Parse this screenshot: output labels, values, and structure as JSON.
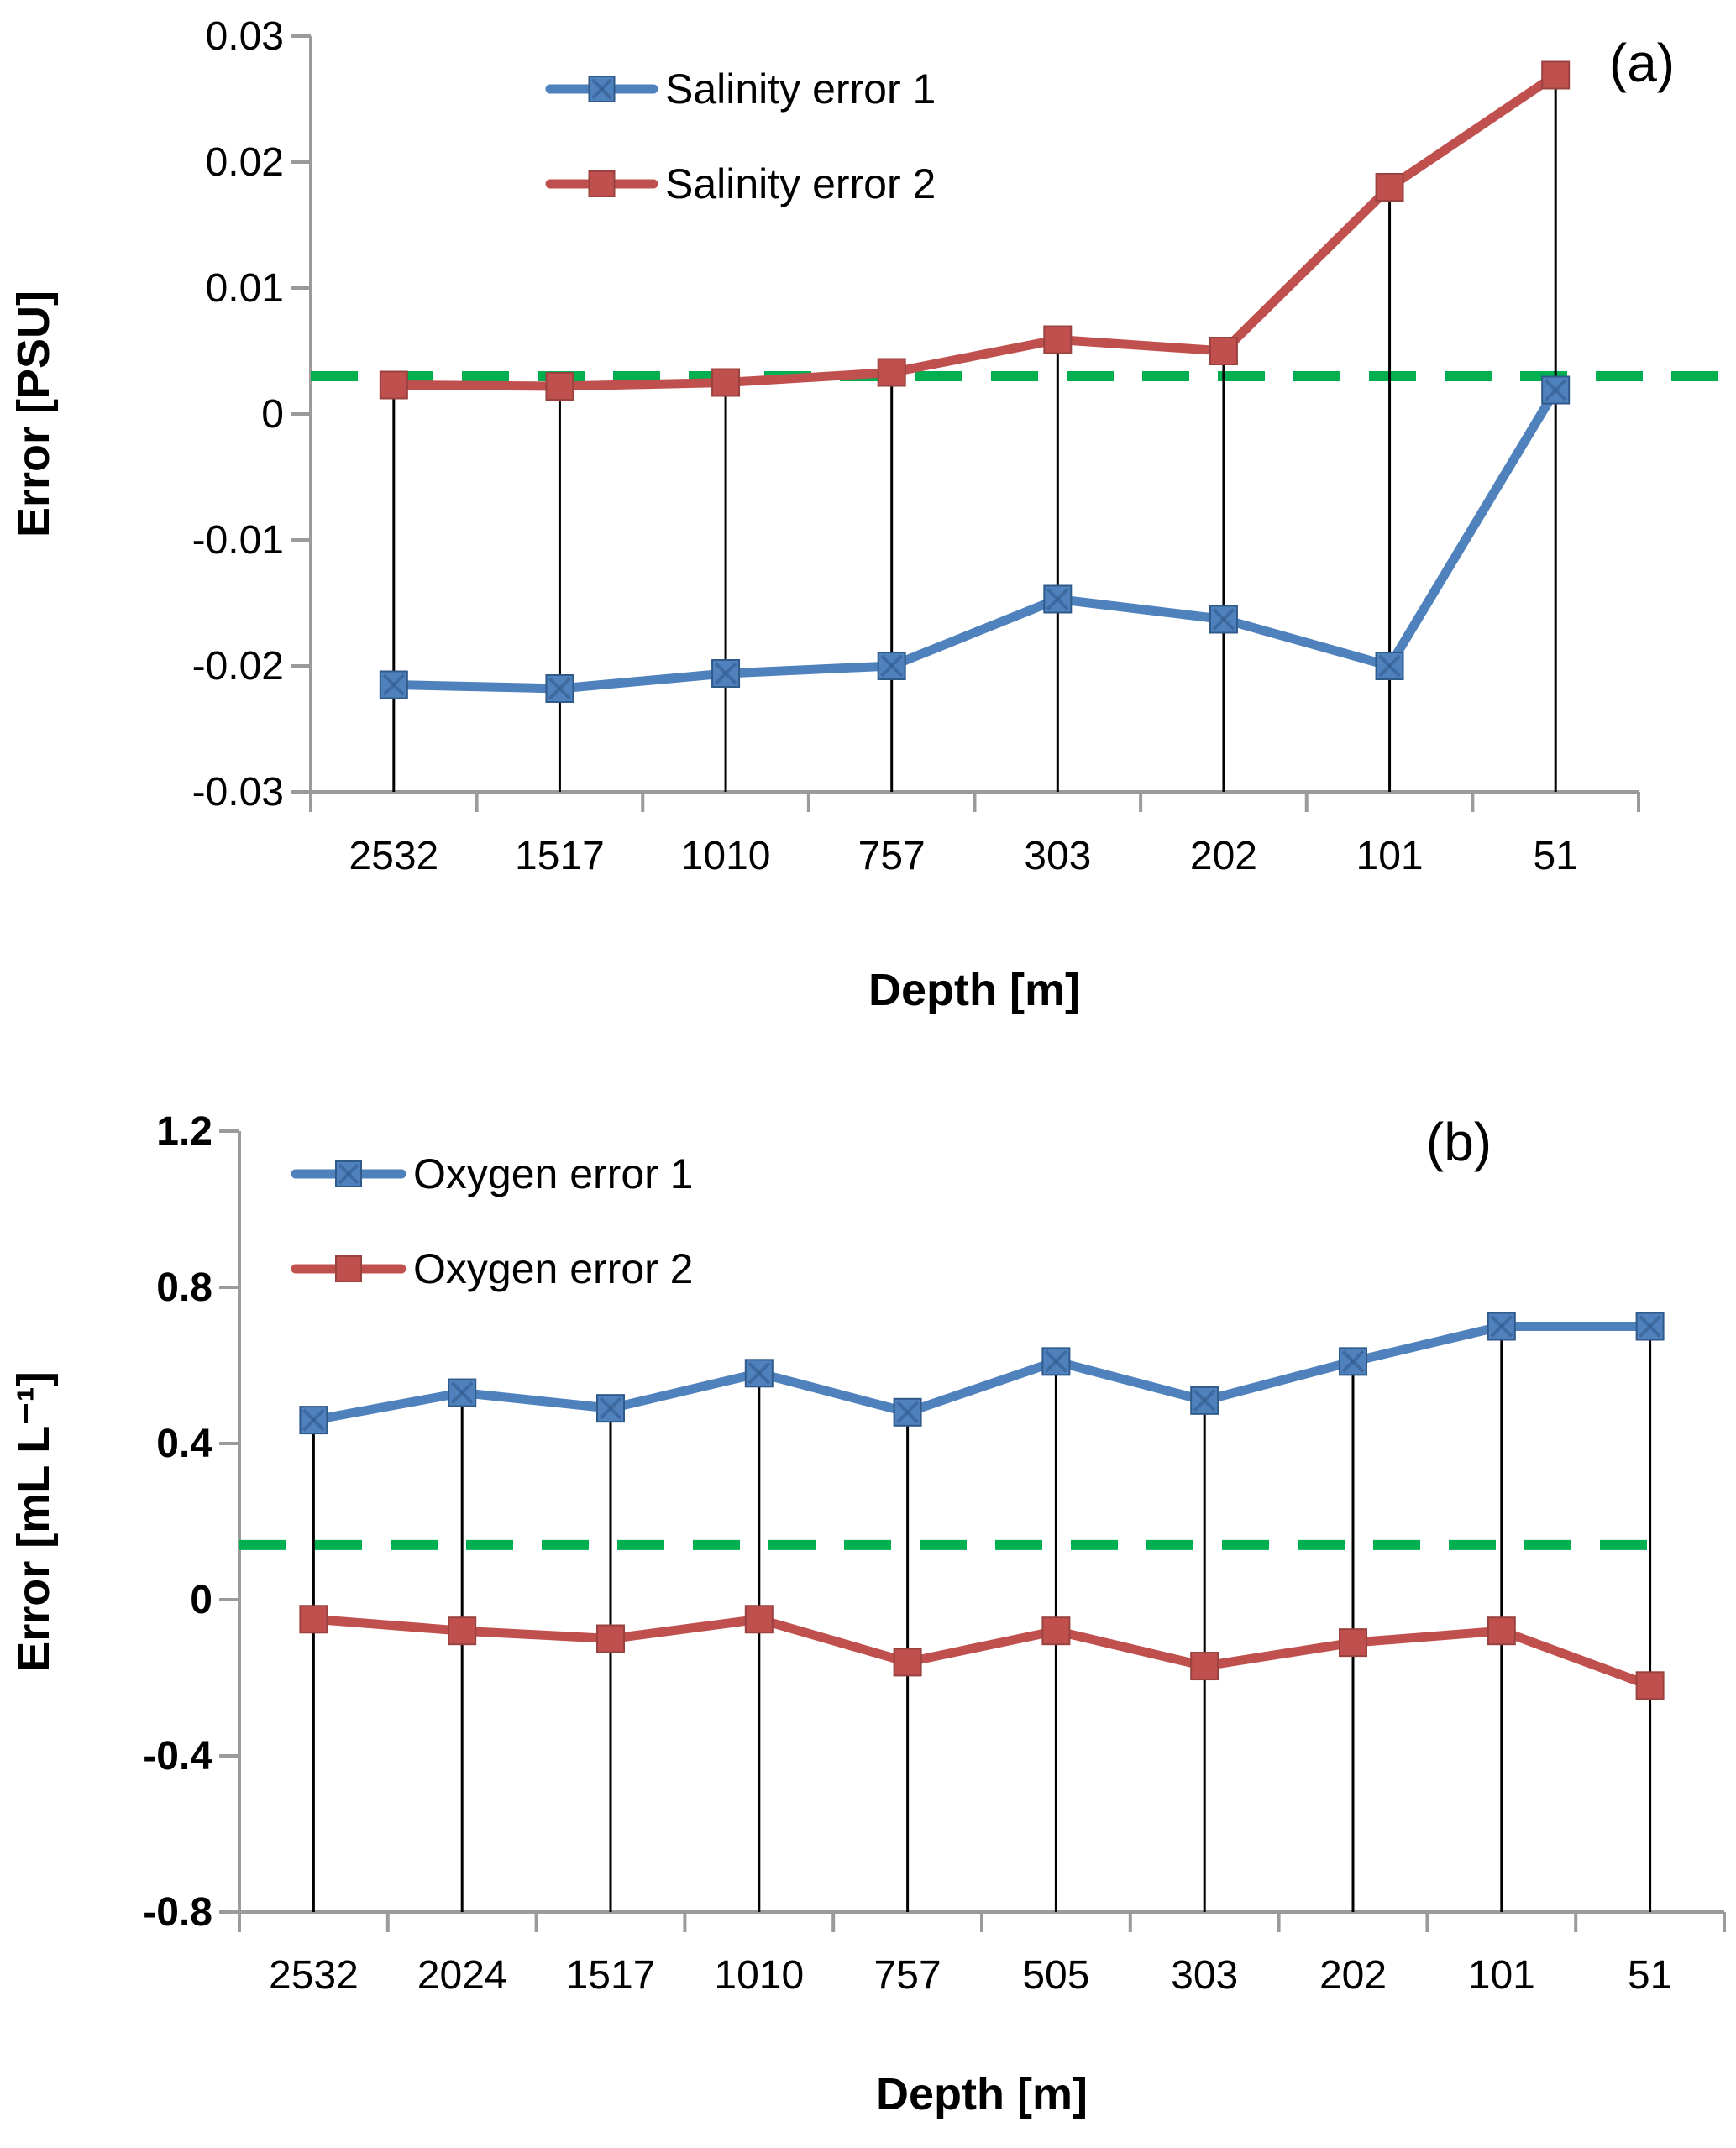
{
  "figure": {
    "background": "#ffffff",
    "colors": {
      "series1_blue": "#4F81BD",
      "series1_blue_dark": "#2F5A8A",
      "series2_red": "#C0504D",
      "series2_red_dark": "#99423F",
      "reference_green": "#00B050",
      "axis_gray": "#9b9b9b",
      "drop_line_black": "#000000",
      "text_black": "#000000"
    }
  },
  "chart_data": [
    {
      "type": "line",
      "panel_label": "(a)",
      "xlabel": "Depth [m]",
      "ylabel": "Error [PSU]",
      "categories": [
        "2532",
        "1517",
        "1010",
        "757",
        "303",
        "202",
        "101",
        "51"
      ],
      "series": [
        {
          "name": "Salinity error 1",
          "color": "#4F81BD",
          "marker": "square-x",
          "values": [
            -0.0215,
            -0.0218,
            -0.0206,
            -0.02,
            -0.0147,
            -0.0163,
            -0.02,
            0.0019
          ]
        },
        {
          "name": "Salinity error 2",
          "color": "#C0504D",
          "marker": "square",
          "values": [
            0.0023,
            0.0022,
            0.0025,
            0.0033,
            0.0059,
            0.005,
            0.018,
            0.0269
          ]
        }
      ],
      "reference_line": {
        "value": 0.003,
        "color": "#00B050",
        "style": "dashed"
      },
      "drop_lines": true,
      "ylim": [
        -0.03,
        0.03
      ],
      "ytick_step": 0.01,
      "ytick_labels": [
        "0.03",
        "0.02",
        "0.01",
        "0",
        "-0.01",
        "-0.02",
        "-0.03"
      ],
      "grid": false,
      "legend_position": "inside-top-left",
      "legend": [
        "Salinity error 1",
        "Salinity error 2"
      ]
    },
    {
      "type": "line",
      "panel_label": "(b)",
      "xlabel": "Depth [m]",
      "ylabel": "Error [mL L⁻¹]",
      "categories": [
        "2532",
        "2024",
        "1517",
        "1010",
        "757",
        "505",
        "303",
        "202",
        "101",
        "51"
      ],
      "series": [
        {
          "name": "Oxygen error 1",
          "color": "#4F81BD",
          "marker": "square-x",
          "values": [
            0.46,
            0.53,
            0.49,
            0.58,
            0.48,
            0.61,
            0.51,
            0.61,
            0.7,
            0.7
          ]
        },
        {
          "name": "Oxygen error 2",
          "color": "#C0504D",
          "marker": "square",
          "values": [
            -0.05,
            -0.08,
            -0.1,
            -0.05,
            -0.16,
            -0.08,
            -0.17,
            -0.11,
            -0.08,
            -0.22
          ]
        }
      ],
      "reference_line": {
        "value": 0.14,
        "color": "#00B050",
        "style": "dashed"
      },
      "drop_lines": true,
      "ylim": [
        -0.8,
        1.2
      ],
      "ytick_step": 0.4,
      "ytick_labels": [
        "1.2",
        "0.8",
        "0.4",
        "0",
        "-0.4",
        "-0.8"
      ],
      "grid": false,
      "legend_position": "inside-top-left",
      "legend": [
        "Oxygen error 1",
        "Oxygen error 2"
      ]
    }
  ]
}
